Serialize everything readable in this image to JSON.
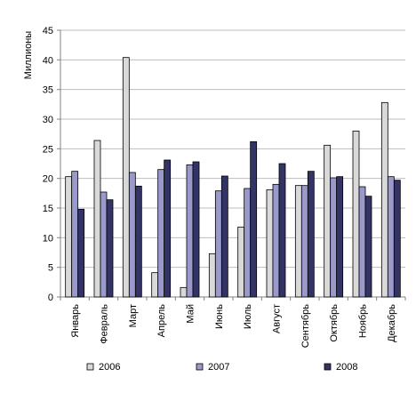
{
  "chart_data": {
    "type": "bar",
    "ylabel": "Миллионы",
    "xlabel": "",
    "title": "",
    "ylim": [
      0,
      45
    ],
    "yticks": [
      0,
      5,
      10,
      15,
      20,
      25,
      30,
      35,
      40,
      45
    ],
    "grid": true,
    "legend_position": "bottom",
    "categories": [
      "Январь",
      "Февраль",
      "Март",
      "Апрель",
      "Май",
      "Июнь",
      "Июль",
      "Август",
      "Сентябрь",
      "Октябрь",
      "Ноябрь",
      "Декабрь"
    ],
    "series": [
      {
        "name": "2006",
        "color": "#d9d9d9",
        "values": [
          20.3,
          26.4,
          40.4,
          4.1,
          1.6,
          7.3,
          11.8,
          18.1,
          18.8,
          25.6,
          28.0,
          32.8
        ]
      },
      {
        "name": "2007",
        "color": "#9999cc",
        "values": [
          21.2,
          17.7,
          21.0,
          21.5,
          22.3,
          17.9,
          18.3,
          19.0,
          18.8,
          20.1,
          18.6,
          20.3
        ]
      },
      {
        "name": "2008",
        "color": "#333366",
        "values": [
          14.8,
          16.4,
          18.7,
          23.1,
          22.8,
          20.4,
          26.2,
          22.5,
          21.2,
          20.3,
          17.0,
          19.7
        ]
      }
    ]
  }
}
